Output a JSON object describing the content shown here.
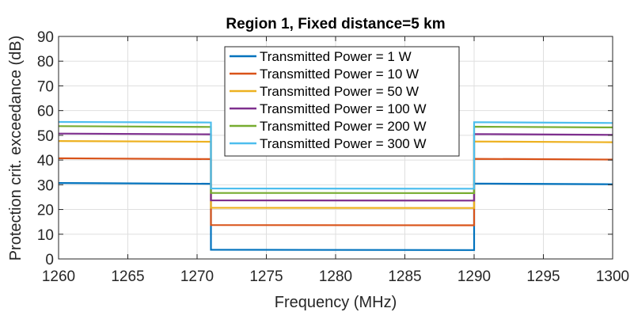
{
  "chart_data": {
    "type": "line",
    "title": "Region 1, Fixed distance=5 km",
    "xlabel": "Frequency (MHz)",
    "ylabel": "Protection crit. exceedance  (dB)",
    "xlim": [
      1260,
      1300
    ],
    "ylim": [
      0,
      90
    ],
    "xticks": [
      1260,
      1265,
      1270,
      1275,
      1280,
      1285,
      1290,
      1295,
      1300
    ],
    "yticks": [
      0,
      10,
      20,
      30,
      40,
      50,
      60,
      70,
      80,
      90
    ],
    "grid": true,
    "legend_position": "top-center",
    "series": [
      {
        "name": "Transmitted Power = 1 W",
        "color": "#0072BD",
        "x": [
          1260,
          1271,
          1271,
          1290,
          1290,
          1300
        ],
        "y": [
          30.7,
          30.4,
          3.7,
          3.6,
          30.5,
          30.2
        ]
      },
      {
        "name": "Transmitted Power = 10 W",
        "color": "#D95319",
        "x": [
          1260,
          1271,
          1271,
          1290,
          1290,
          1300
        ],
        "y": [
          40.7,
          40.4,
          13.7,
          13.6,
          40.5,
          40.2
        ]
      },
      {
        "name": "Transmitted Power = 50 W",
        "color": "#EDB120",
        "x": [
          1260,
          1271,
          1271,
          1290,
          1290,
          1300
        ],
        "y": [
          47.7,
          47.4,
          20.7,
          20.6,
          47.5,
          47.2
        ]
      },
      {
        "name": "Transmitted Power = 100 W",
        "color": "#7E2F8E",
        "x": [
          1260,
          1271,
          1271,
          1290,
          1290,
          1300
        ],
        "y": [
          50.7,
          50.4,
          23.7,
          23.6,
          50.5,
          50.2
        ]
      },
      {
        "name": "Transmitted Power = 200 W",
        "color": "#77AC30",
        "x": [
          1260,
          1271,
          1271,
          1290,
          1290,
          1300
        ],
        "y": [
          53.7,
          53.4,
          26.7,
          26.6,
          53.5,
          53.2
        ]
      },
      {
        "name": "Transmitted Power = 300 W",
        "color": "#4DBEEE",
        "x": [
          1260,
          1271,
          1271,
          1290,
          1290,
          1300
        ],
        "y": [
          55.4,
          55.2,
          28.5,
          28.4,
          55.3,
          55.0
        ]
      }
    ]
  }
}
